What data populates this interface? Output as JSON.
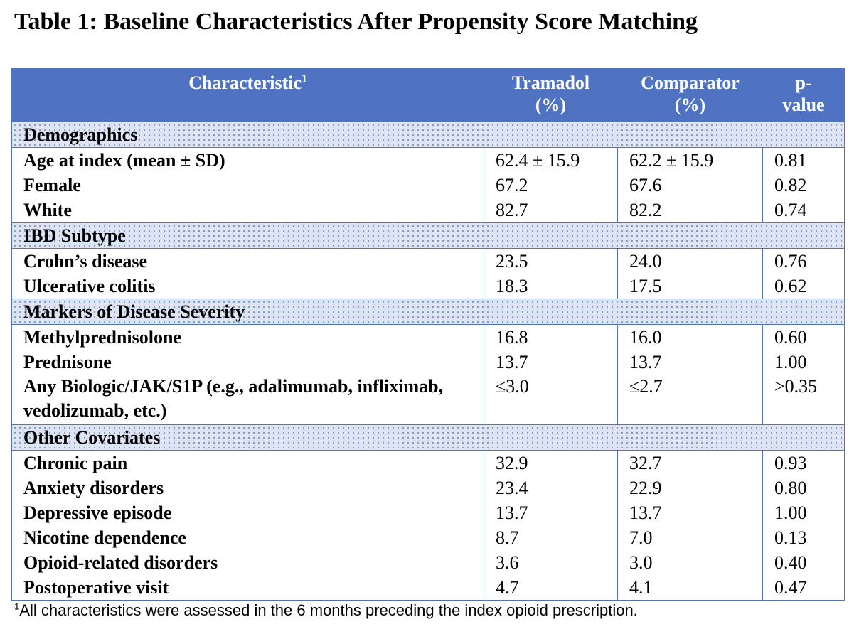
{
  "title": "Table 1: Baseline Characteristics After Propensity Score Matching",
  "columns": {
    "characteristic": "Characteristic",
    "characteristic_sup": "1",
    "tramadol_line1": "Tramadol",
    "tramadol_line2": "(%)",
    "comparator_line1": "Comparator",
    "comparator_line2": "(%)",
    "pvalue_line1": "p-",
    "pvalue_line2": "value"
  },
  "sections": [
    {
      "name": "Demographics",
      "rows": [
        {
          "label": "Age at index (mean ± SD)",
          "tramadol": "62.4 ± 15.9",
          "comparator": "62.2 ± 15.9",
          "p": "0.81"
        },
        {
          "label": "Female",
          "tramadol": "67.2",
          "comparator": "67.6",
          "p": "0.82"
        },
        {
          "label": "White",
          "tramadol": "82.7",
          "comparator": "82.2",
          "p": "0.74"
        }
      ]
    },
    {
      "name": "IBD Subtype",
      "rows": [
        {
          "label": "Crohn’s disease",
          "tramadol": "23.5",
          "comparator": "24.0",
          "p": "0.76"
        },
        {
          "label": "Ulcerative colitis",
          "tramadol": "18.3",
          "comparator": "17.5",
          "p": "0.62"
        }
      ]
    },
    {
      "name": "Markers of Disease Severity",
      "rows": [
        {
          "label": "Methylprednisolone",
          "tramadol": "16.8",
          "comparator": "16.0",
          "p": "0.60"
        },
        {
          "label": "Prednisone",
          "tramadol": "13.7",
          "comparator": "13.7",
          "p": "1.00"
        },
        {
          "label": "Any Biologic/JAK/S1P (e.g., adalimumab, infliximab, vedolizumab, etc.)",
          "tramadol": "≤3.0",
          "comparator": "≤2.7",
          "p": ">0.35"
        }
      ]
    },
    {
      "name": "Other Covariates",
      "rows": [
        {
          "label": "Chronic pain",
          "tramadol": "32.9",
          "comparator": "32.7",
          "p": "0.93"
        },
        {
          "label": "Anxiety disorders",
          "tramadol": "23.4",
          "comparator": "22.9",
          "p": "0.80"
        },
        {
          "label": "Depressive episode",
          "tramadol": "13.7",
          "comparator": "13.7",
          "p": "1.00"
        },
        {
          "label": "Nicotine dependence",
          "tramadol": "8.7",
          "comparator": "7.0",
          "p": "0.13"
        },
        {
          "label": "Opioid-related disorders",
          "tramadol": "3.6",
          "comparator": "3.0",
          "p": "0.40"
        },
        {
          "label": "Postoperative visit",
          "tramadol": "4.7",
          "comparator": "4.1",
          "p": "0.47"
        }
      ]
    }
  ],
  "footnote_marker": "1",
  "footnote": "All characteristics were assessed in the 6 months preceding the index opioid prescription.",
  "colors": {
    "header_bg": "#4f73c2",
    "section_bg": "#dde4f4"
  }
}
